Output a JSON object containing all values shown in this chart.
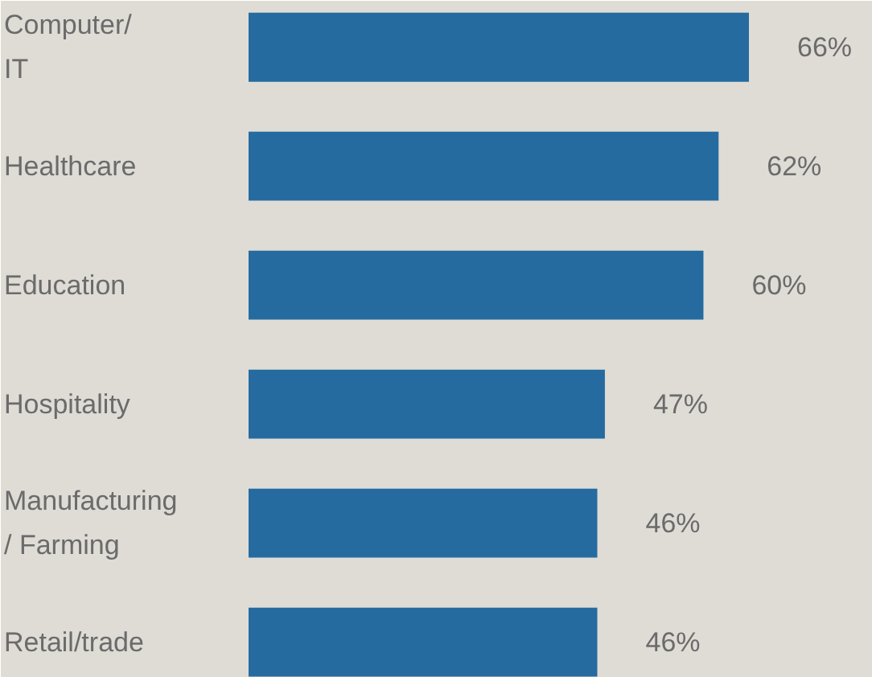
{
  "chart_data": {
    "type": "bar",
    "orientation": "horizontal",
    "categories": [
      "Computer/\nIT",
      "Healthcare",
      "Education",
      "Hospitality",
      "Manufacturing\n/ Farming",
      "Retail/trade"
    ],
    "values": [
      66,
      62,
      60,
      47,
      46,
      46
    ],
    "value_labels": [
      "66%",
      "62%",
      "60%",
      "47%",
      "46%",
      "46%"
    ],
    "color": "#256ba0",
    "tick_labels": false,
    "grid": false
  }
}
